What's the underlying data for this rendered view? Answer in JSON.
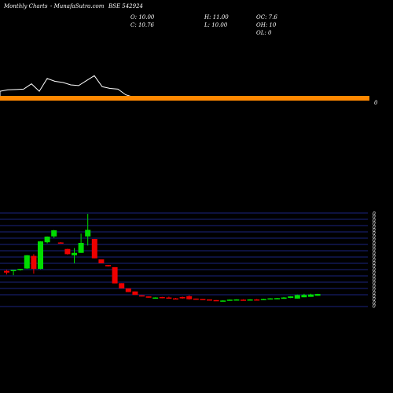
{
  "header": {
    "brand": "Monthly Charts",
    "site": "- MunafaSutra.com",
    "symbol": "BSE 542924",
    "o_label": "O: 10.00",
    "h_label": "H: 11.00",
    "oc_label": "OC: 7.6",
    "c_label": "C: 10.76",
    "l_label": "L: 10.00",
    "oh_label": "OH: 10",
    "ol_label": "OL: 0"
  },
  "colors": {
    "background": "#000000",
    "up": "#00dd00",
    "down": "#ee0000",
    "grid": "#1a237e",
    "volume_line": "#ffffff",
    "volume_band": "#ff8800"
  },
  "chart_data": {
    "type": "candlestick",
    "panes": [
      "volume",
      "price"
    ],
    "y_axis_tick_labels": [
      "0"
    ],
    "volume_marker": "0",
    "volume_line": [
      0.22,
      0.26,
      0.27,
      0.28,
      0.43,
      0.22,
      0.58,
      0.5,
      0.47,
      0.4,
      0.38,
      0.52,
      0.66,
      0.35,
      0.3,
      0.28,
      0.12,
      0.05,
      0.02,
      0.01,
      0.0,
      0.0,
      0.0,
      0.0,
      0.0,
      0.0,
      0.0,
      0.0,
      0.0,
      0.0,
      0.0,
      0.0,
      0.0,
      0.0,
      0.0,
      0.0,
      0.0,
      0.0,
      0.0,
      0.0,
      0.0,
      0.0,
      0.0,
      0.0,
      0.0,
      0.0,
      0.0
    ],
    "candles": [
      {
        "o": 10.3,
        "h": 10.8,
        "l": 8.6,
        "c": 9.5
      },
      {
        "o": 10.4,
        "h": 10.6,
        "l": 8.3,
        "c": 10.7
      },
      {
        "o": 10.9,
        "h": 11.1,
        "l": 10.4,
        "c": 11.2
      },
      {
        "o": 11.4,
        "h": 17.6,
        "l": 11.2,
        "c": 17.5
      },
      {
        "o": 17.2,
        "h": 18.0,
        "l": 9.0,
        "c": 11.2
      },
      {
        "o": 11.2,
        "h": 24.0,
        "l": 11.0,
        "c": 23.9
      },
      {
        "o": 23.5,
        "h": 26.2,
        "l": 23.0,
        "c": 26.1
      },
      {
        "o": 26.2,
        "h": 29.2,
        "l": 25.5,
        "c": 29.0
      },
      {
        "o": 23.4,
        "h": 23.6,
        "l": 23.0,
        "c": 23.2
      },
      {
        "o": 20.4,
        "h": 20.5,
        "l": 17.8,
        "c": 18.0
      },
      {
        "o": 17.5,
        "h": 20.8,
        "l": 13.8,
        "c": 18.6
      },
      {
        "o": 18.6,
        "h": 27.5,
        "l": 18.6,
        "c": 23.2
      },
      {
        "o": 26.2,
        "h": 36.6,
        "l": 22.0,
        "c": 29.2
      },
      {
        "o": 25.0,
        "h": 25.0,
        "l": 16.1,
        "c": 16.1
      },
      {
        "o": 15.6,
        "h": 15.6,
        "l": 13.8,
        "c": 13.8
      },
      {
        "o": 13.0,
        "h": 13.0,
        "l": 12.3,
        "c": 12.4
      },
      {
        "o": 12.0,
        "h": 12.0,
        "l": 4.5,
        "c": 4.5
      },
      {
        "o": 4.6,
        "h": 4.6,
        "l": 2.2,
        "c": 2.2
      },
      {
        "o": 2.2,
        "h": 2.2,
        "l": 0.5,
        "c": 0.5
      },
      {
        "o": 0.8,
        "h": 0.8,
        "l": -0.8,
        "c": -0.8
      },
      {
        "o": -1.0,
        "h": -1.0,
        "l": -1.5,
        "c": -1.5
      },
      {
        "o": -1.5,
        "h": -1.5,
        "l": -2.1,
        "c": -2.1
      },
      {
        "o": -2.1,
        "h": -1.9,
        "l": -2.2,
        "c": -2.0
      },
      {
        "o": -1.8,
        "h": -1.7,
        "l": -2.4,
        "c": -2.3
      },
      {
        "o": -2.0,
        "h": -1.6,
        "l": -2.2,
        "c": -2.1
      },
      {
        "o": -2.4,
        "h": -2.2,
        "l": -2.6,
        "c": -2.5
      },
      {
        "o": -1.8,
        "h": -1.6,
        "l": -2.6,
        "c": -2.4
      },
      {
        "o": -1.4,
        "h": -1.0,
        "l": -3.0,
        "c": -2.8
      },
      {
        "o": -2.5,
        "h": -2.5,
        "l": -3.0,
        "c": -3.0
      },
      {
        "o": -2.7,
        "h": -2.7,
        "l": -3.1,
        "c": -3.1
      },
      {
        "o": -2.9,
        "h": -2.9,
        "l": -3.4,
        "c": -3.4
      },
      {
        "o": -3.2,
        "h": -3.2,
        "l": -3.6,
        "c": -3.6
      },
      {
        "o": -3.5,
        "h": -3.3,
        "l": -3.6,
        "c": -3.4
      },
      {
        "o": -3.5,
        "h": -2.9,
        "l": -3.5,
        "c": -3.0
      },
      {
        "o": -3.3,
        "h": -2.8,
        "l": -3.3,
        "c": -2.9
      },
      {
        "o": -3.0,
        "h": -2.8,
        "l": -3.3,
        "c": -3.1
      },
      {
        "o": -3.2,
        "h": -2.8,
        "l": -3.2,
        "c": -2.9
      },
      {
        "o": -2.9,
        "h": -2.7,
        "l": -3.2,
        "c": -3.0
      },
      {
        "o": -3.0,
        "h": -2.6,
        "l": -3.0,
        "c": -2.7
      },
      {
        "o": -2.8,
        "h": -2.3,
        "l": -2.9,
        "c": -2.4
      },
      {
        "o": -2.7,
        "h": -2.2,
        "l": -2.7,
        "c": -2.3
      },
      {
        "o": -2.6,
        "h": -1.8,
        "l": -2.6,
        "c": -2.0
      },
      {
        "o": -2.2,
        "h": -1.4,
        "l": -2.3,
        "c": -1.5
      },
      {
        "o": -2.5,
        "h": -0.6,
        "l": -2.5,
        "c": -0.9
      },
      {
        "o": -1.9,
        "h": -0.3,
        "l": -1.9,
        "c": -0.8
      },
      {
        "o": -1.7,
        "h": -0.3,
        "l": -1.7,
        "c": -0.6
      },
      {
        "o": -1.2,
        "h": -0.3,
        "l": -1.2,
        "c": -0.4
      }
    ]
  }
}
